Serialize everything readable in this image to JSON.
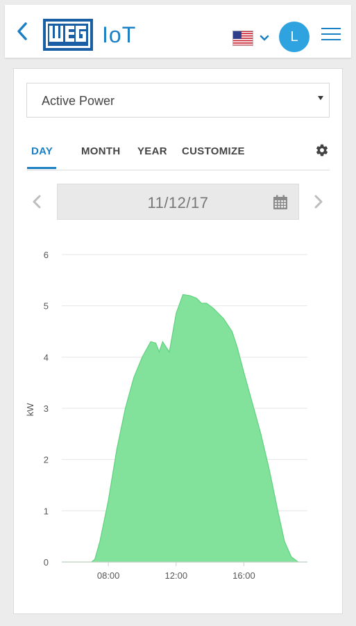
{
  "header": {
    "logo_text": "WEG",
    "app_name": "IoT",
    "user_initial": "L",
    "language_flag": "us-flag-icon"
  },
  "metric_select": {
    "value": "Active Power"
  },
  "tabs": [
    {
      "label": "DAY",
      "active": true
    },
    {
      "label": "MONTH",
      "active": false
    },
    {
      "label": "YEAR",
      "active": false
    },
    {
      "label": "CUSTOMIZE",
      "active": false
    }
  ],
  "date_nav": {
    "date": "11/12/17"
  },
  "colors": {
    "accent": "#1a7fc3",
    "avatar": "#2ea3df",
    "area_fill": "#82e19b",
    "area_stroke": "#5fd27e"
  },
  "chart_data": {
    "type": "area",
    "ylabel": "kW",
    "ylim": [
      0,
      6
    ],
    "yticks": [
      "0",
      "1",
      "2",
      "3",
      "4",
      "5",
      "6"
    ],
    "xlim": [
      5.25,
      19.75
    ],
    "xticks": [
      {
        "value": 8,
        "label": "08:00"
      },
      {
        "value": 12,
        "label": "12:00"
      },
      {
        "value": 16,
        "label": "16:00"
      }
    ],
    "grid": true,
    "series": [
      {
        "points": [
          [
            5.25,
            0
          ],
          [
            6.0,
            0
          ],
          [
            6.5,
            0
          ],
          [
            7.0,
            0
          ],
          [
            7.2,
            0.05
          ],
          [
            7.5,
            0.4
          ],
          [
            8.0,
            1.2
          ],
          [
            8.5,
            2.2
          ],
          [
            9.0,
            3.0
          ],
          [
            9.5,
            3.6
          ],
          [
            10.0,
            4.0
          ],
          [
            10.5,
            4.3
          ],
          [
            10.8,
            4.27
          ],
          [
            11.0,
            4.1
          ],
          [
            11.2,
            4.3
          ],
          [
            11.6,
            4.1
          ],
          [
            12.0,
            4.85
          ],
          [
            12.4,
            5.22
          ],
          [
            12.8,
            5.2
          ],
          [
            13.2,
            5.15
          ],
          [
            13.5,
            5.05
          ],
          [
            13.8,
            5.05
          ],
          [
            14.2,
            4.95
          ],
          [
            14.8,
            4.75
          ],
          [
            15.3,
            4.5
          ],
          [
            15.6,
            4.2
          ],
          [
            16.0,
            3.7
          ],
          [
            16.5,
            3.1
          ],
          [
            17.0,
            2.5
          ],
          [
            17.5,
            1.8
          ],
          [
            18.0,
            1.0
          ],
          [
            18.4,
            0.4
          ],
          [
            18.8,
            0.1
          ],
          [
            19.2,
            0
          ],
          [
            19.75,
            0
          ]
        ]
      }
    ]
  }
}
